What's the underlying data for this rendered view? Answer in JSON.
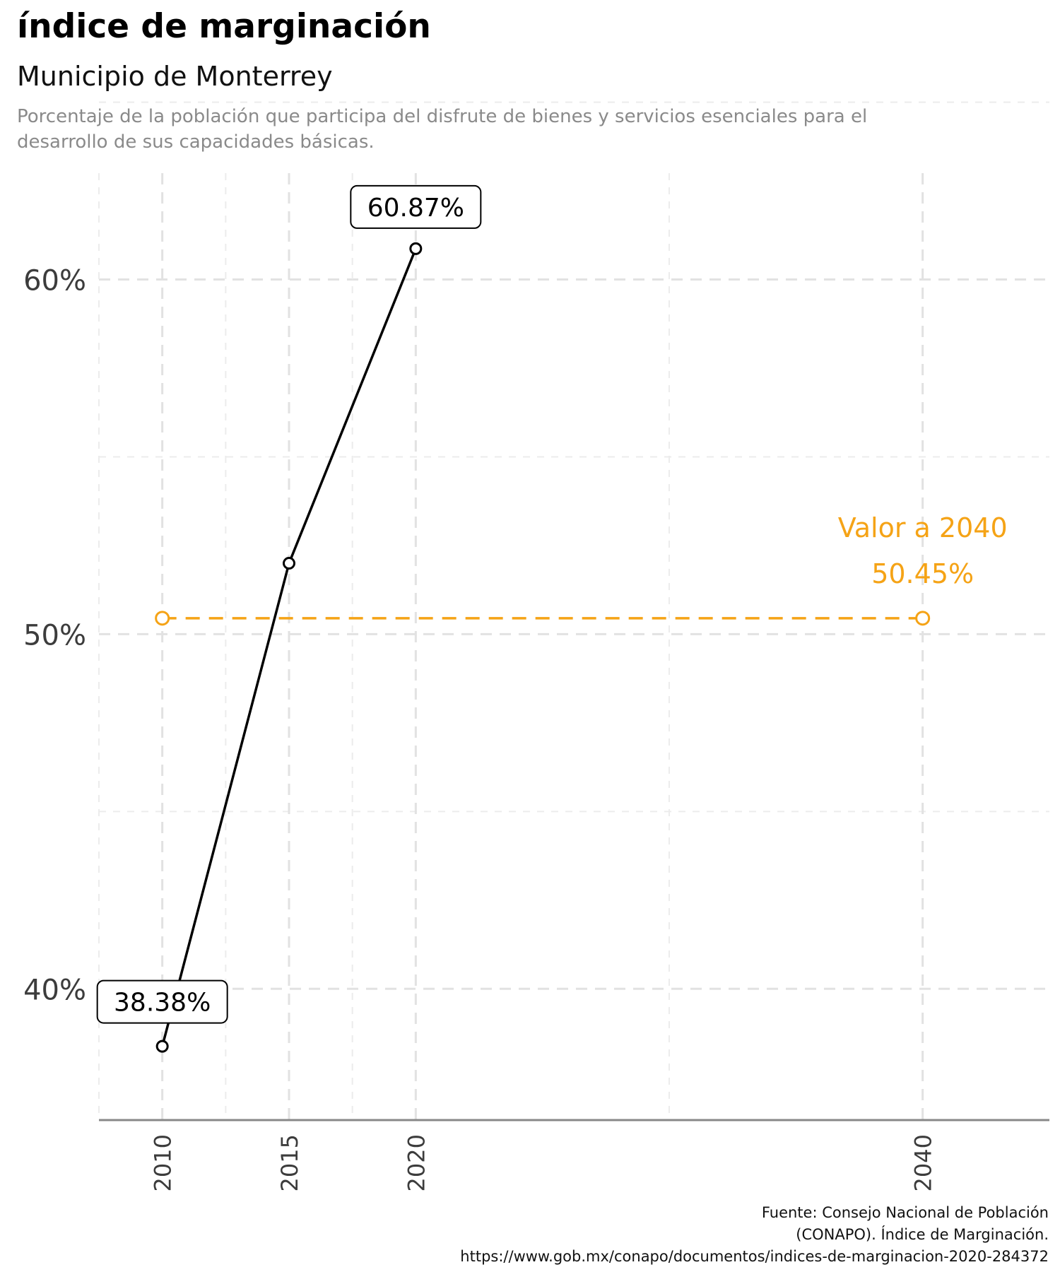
{
  "header": {
    "title": "índice de marginación",
    "subtitle": "Municipio de Monterrey",
    "description": "Porcentaje de la población que participa del disfrute de bienes y servicios esenciales para el desarrollo de sus capacidades básicas."
  },
  "caption": {
    "lines": [
      "Fuente: Consejo Nacional de Población",
      "(CONAPO). Índice de Marginación.",
      "https://www.gob.mx/conapo/documentos/indices-de-marginacion-2020-284372"
    ]
  },
  "colors": {
    "series": "#000000",
    "projection": "#f5a316",
    "grid": "#e2e2e2",
    "axis": "#888888",
    "tick_text": "#3c3c3c"
  },
  "chart_data": {
    "type": "line",
    "title": "índice de marginación",
    "subtitle": "Municipio de Monterrey",
    "xlabel": "",
    "ylabel": "",
    "xlim": [
      2007.5,
      2045
    ],
    "ylim": [
      36.3,
      63
    ],
    "x_ticks": [
      2010,
      2015,
      2020,
      2040
    ],
    "x_tick_labels": [
      "2010",
      "2015",
      "2020",
      "2040"
    ],
    "y_ticks": [
      40,
      50,
      60
    ],
    "y_tick_labels": [
      "40%",
      "50%",
      "60%"
    ],
    "grid": true,
    "series": [
      {
        "x": [
          2010,
          2015,
          2020
        ],
        "y": [
          38.38,
          52.0,
          60.87
        ],
        "labels": [
          "38.38%",
          "",
          "60.87%"
        ]
      },
      {
        "x": [
          2010,
          2040
        ],
        "y": [
          50.45,
          50.45
        ],
        "style": "dashed",
        "labels": [
          "",
          "50.45%"
        ]
      }
    ],
    "annotations": [
      {
        "text": "Valor a 2040",
        "x": 2040,
        "y": 50.45
      },
      {
        "text": "50.45%",
        "x": 2040,
        "y": 50.45
      }
    ]
  }
}
